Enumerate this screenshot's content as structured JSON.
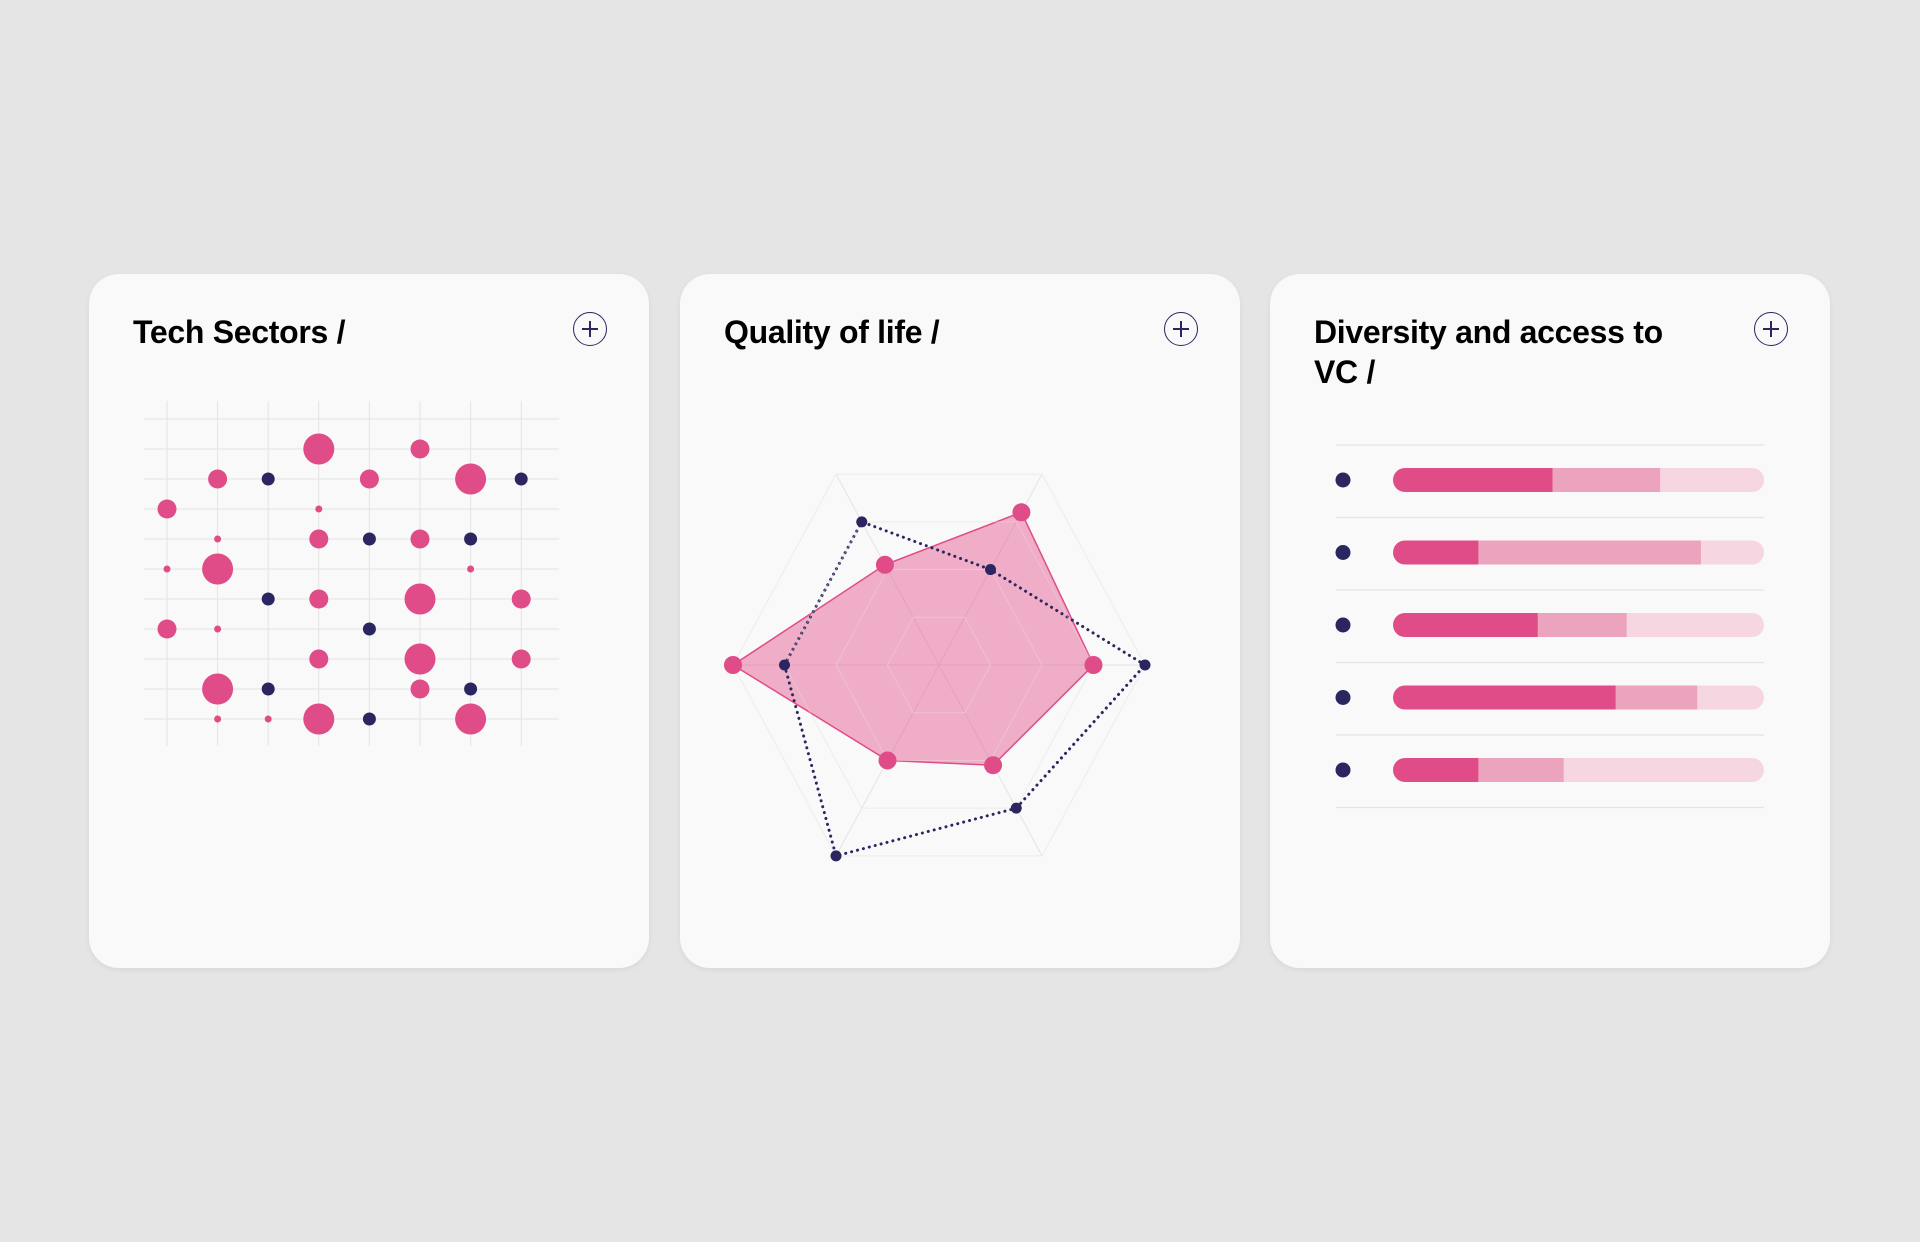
{
  "cards": [
    {
      "title": "Tech Sectors /"
    },
    {
      "title": "Quality of life /"
    },
    {
      "title": "Diversity and access to VC /"
    }
  ],
  "colors": {
    "pink": "#e04c87",
    "pink_mid": "#eca3be",
    "pink_light": "#f5d6e1",
    "navy": "#2b2660",
    "grid": "#e4e4e4",
    "background": "#e5e5e5",
    "card": "#f9f9f9"
  },
  "chart_data": [
    {
      "type": "scatter",
      "title": "Tech Sectors /",
      "grid": true,
      "columns": 8,
      "rows": 11,
      "size_scale": "1 = tiny, 2 = small, 3 = medium, 4 = large",
      "series": [
        {
          "color": "pink",
          "points": [
            {
              "col": 4,
              "row": 1,
              "size": 4
            },
            {
              "col": 6,
              "row": 1,
              "size": 3
            },
            {
              "col": 2,
              "row": 2,
              "size": 3
            },
            {
              "col": 5,
              "row": 2,
              "size": 3
            },
            {
              "col": 7,
              "row": 2,
              "size": 4
            },
            {
              "col": 1,
              "row": 3,
              "size": 3
            },
            {
              "col": 4,
              "row": 3,
              "size": 1
            },
            {
              "col": 2,
              "row": 4,
              "size": 1
            },
            {
              "col": 4,
              "row": 4,
              "size": 3
            },
            {
              "col": 6,
              "row": 4,
              "size": 3
            },
            {
              "col": 1,
              "row": 5,
              "size": 1
            },
            {
              "col": 2,
              "row": 5,
              "size": 4
            },
            {
              "col": 7,
              "row": 5,
              "size": 1
            },
            {
              "col": 4,
              "row": 6,
              "size": 3
            },
            {
              "col": 6,
              "row": 6,
              "size": 4
            },
            {
              "col": 8,
              "row": 6,
              "size": 3
            },
            {
              "col": 1,
              "row": 7,
              "size": 3
            },
            {
              "col": 2,
              "row": 7,
              "size": 1
            },
            {
              "col": 4,
              "row": 8,
              "size": 3
            },
            {
              "col": 6,
              "row": 8,
              "size": 4
            },
            {
              "col": 8,
              "row": 8,
              "size": 3
            },
            {
              "col": 2,
              "row": 9,
              "size": 4
            },
            {
              "col": 6,
              "row": 9,
              "size": 3
            },
            {
              "col": 2,
              "row": 10,
              "size": 1
            },
            {
              "col": 3,
              "row": 10,
              "size": 1
            },
            {
              "col": 4,
              "row": 10,
              "size": 4
            },
            {
              "col": 7,
              "row": 10,
              "size": 4
            }
          ]
        },
        {
          "color": "navy",
          "points": [
            {
              "col": 3,
              "row": 2,
              "size": 2
            },
            {
              "col": 8,
              "row": 2,
              "size": 2
            },
            {
              "col": 5,
              "row": 4,
              "size": 2
            },
            {
              "col": 7,
              "row": 4,
              "size": 2
            },
            {
              "col": 3,
              "row": 6,
              "size": 2
            },
            {
              "col": 5,
              "row": 7,
              "size": 2
            },
            {
              "col": 3,
              "row": 9,
              "size": 2
            },
            {
              "col": 7,
              "row": 9,
              "size": 2
            },
            {
              "col": 5,
              "row": 10,
              "size": 2
            }
          ]
        }
      ]
    },
    {
      "type": "radar",
      "title": "Quality of life /",
      "axes": 6,
      "axis_order": [
        "right",
        "top-right",
        "top-left",
        "left",
        "bottom-left",
        "bottom-right"
      ],
      "range": [
        0,
        4
      ],
      "rings": 4,
      "series": [
        {
          "color": "pink",
          "style": "filled",
          "values": [
            3,
            3.2,
            2.1,
            4,
            2,
            2.1
          ]
        },
        {
          "color": "navy",
          "style": "dotted",
          "values": [
            4,
            2,
            3,
            3,
            4,
            3
          ]
        }
      ]
    },
    {
      "type": "bar",
      "stacked": true,
      "orientation": "horizontal",
      "title": "Diversity and access to VC /",
      "xlim": [
        0,
        100
      ],
      "rows": [
        {
          "segments": [
            43,
            29,
            28
          ]
        },
        {
          "segments": [
            23,
            60,
            17
          ]
        },
        {
          "segments": [
            39,
            24,
            37
          ]
        },
        {
          "segments": [
            60,
            22,
            18
          ]
        },
        {
          "segments": [
            23,
            23,
            54
          ]
        }
      ],
      "segment_colors": [
        "pink",
        "pink_mid",
        "pink_light"
      ]
    }
  ]
}
